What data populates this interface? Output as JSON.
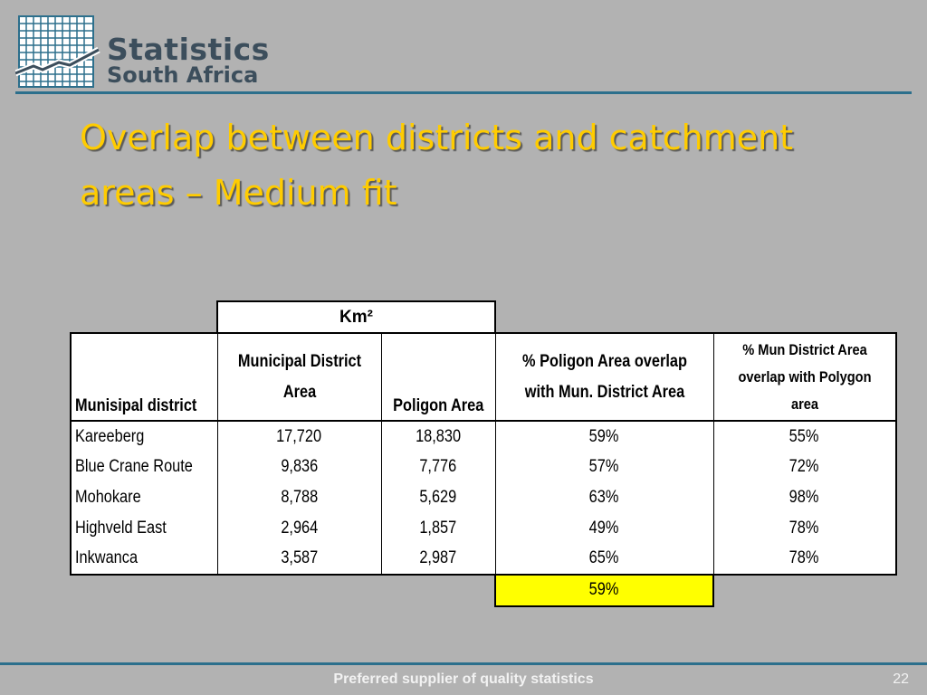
{
  "logo": {
    "line1": "Statistics",
    "line2": "South Africa"
  },
  "slide": {
    "title_line1": "Overlap between districts and catchment",
    "title_line2": "areas – Medium fit"
  },
  "table": {
    "group_header": "Km²",
    "columns": [
      "Munisipal district",
      "Municipal District Area",
      "Poligon Area",
      "% Poligon Area overlap with Mun. District Area",
      "% Mun District Area overlap with Polygon area"
    ],
    "rows": [
      [
        "Kareeberg",
        "17,720",
        "18,830",
        "59%",
        "55%"
      ],
      [
        "Blue Crane Route",
        "9,836",
        "7,776",
        "57%",
        "72%"
      ],
      [
        "Mohokare",
        "8,788",
        "5,629",
        "63%",
        "98%"
      ],
      [
        "Highveld East",
        "2,964",
        "1,857",
        "49%",
        "78%"
      ],
      [
        "Inkwanca",
        "3,587",
        "2,987",
        "65%",
        "78%"
      ]
    ],
    "average": "59%",
    "highlight_color": "#ffff00"
  },
  "footer": {
    "text": "Preferred supplier of quality statistics",
    "page": "22"
  },
  "colors": {
    "title": "#ffcc00",
    "rule": "#2c6f8c",
    "background": "#b2b2b2",
    "logo_text": "#3c4e5c",
    "logo_grid": "#2c6f8c"
  }
}
